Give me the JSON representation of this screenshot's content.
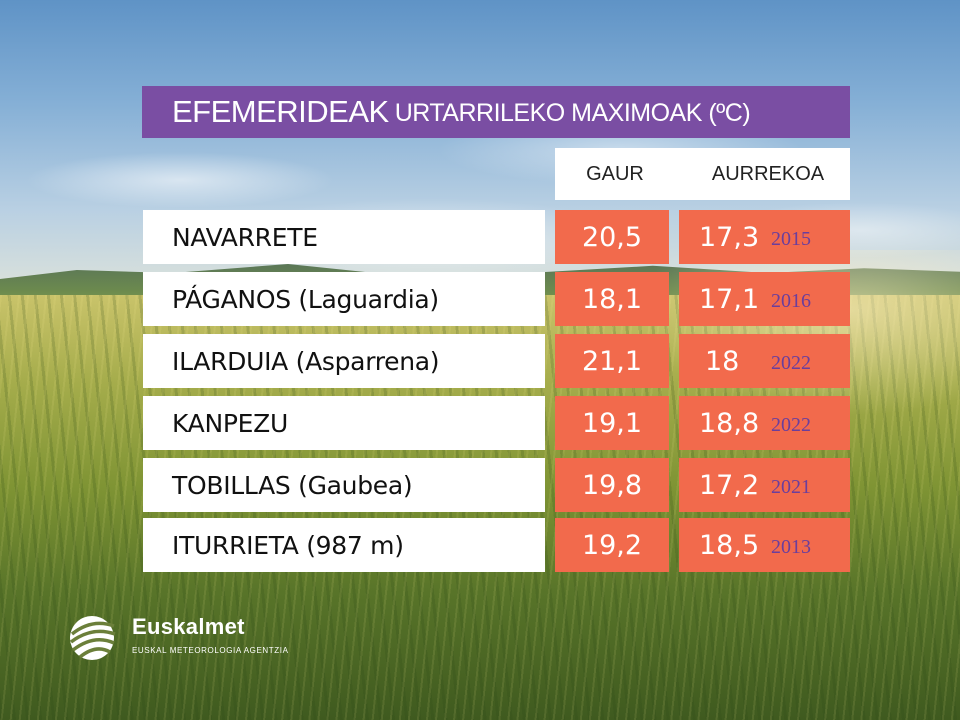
{
  "title": {
    "main": "EFEMERIDEAK",
    "sub": "URTARRILEKO MAXIMOAK (ºC)"
  },
  "columns": {
    "today": "GAUR",
    "previous": "AURREKOA"
  },
  "rows": [
    {
      "station": "NAVARRETE",
      "today": "20,5",
      "record": "17,3",
      "record_year": "2015"
    },
    {
      "station": "PÁGANOS (Laguardia)",
      "today": "18,1",
      "record": "17,1",
      "record_year": "2016"
    },
    {
      "station": "ILARDUIA (Asparrena)",
      "today": "21,1",
      "record": "18",
      "record_year": "2022"
    },
    {
      "station": "KANPEZU",
      "today": "19,1",
      "record": "18,8",
      "record_year": "2022"
    },
    {
      "station": "TOBILLAS (Gaubea)",
      "today": "19,8",
      "record": "17,2",
      "record_year": "2021"
    },
    {
      "station": "ITURRIETA (987 m)",
      "today": "19,2",
      "record": "18,5",
      "record_year": "2013"
    }
  ],
  "logo": {
    "name": "Euskalmet",
    "tagline": "EUSKAL METEOROLOGIA AGENTZIA",
    "icon": "euskalmet-logo-icon"
  },
  "colors": {
    "title_bg": "#7a4ea3",
    "value_bg": "#f26a4c",
    "year_text": "#6b3e9c"
  }
}
